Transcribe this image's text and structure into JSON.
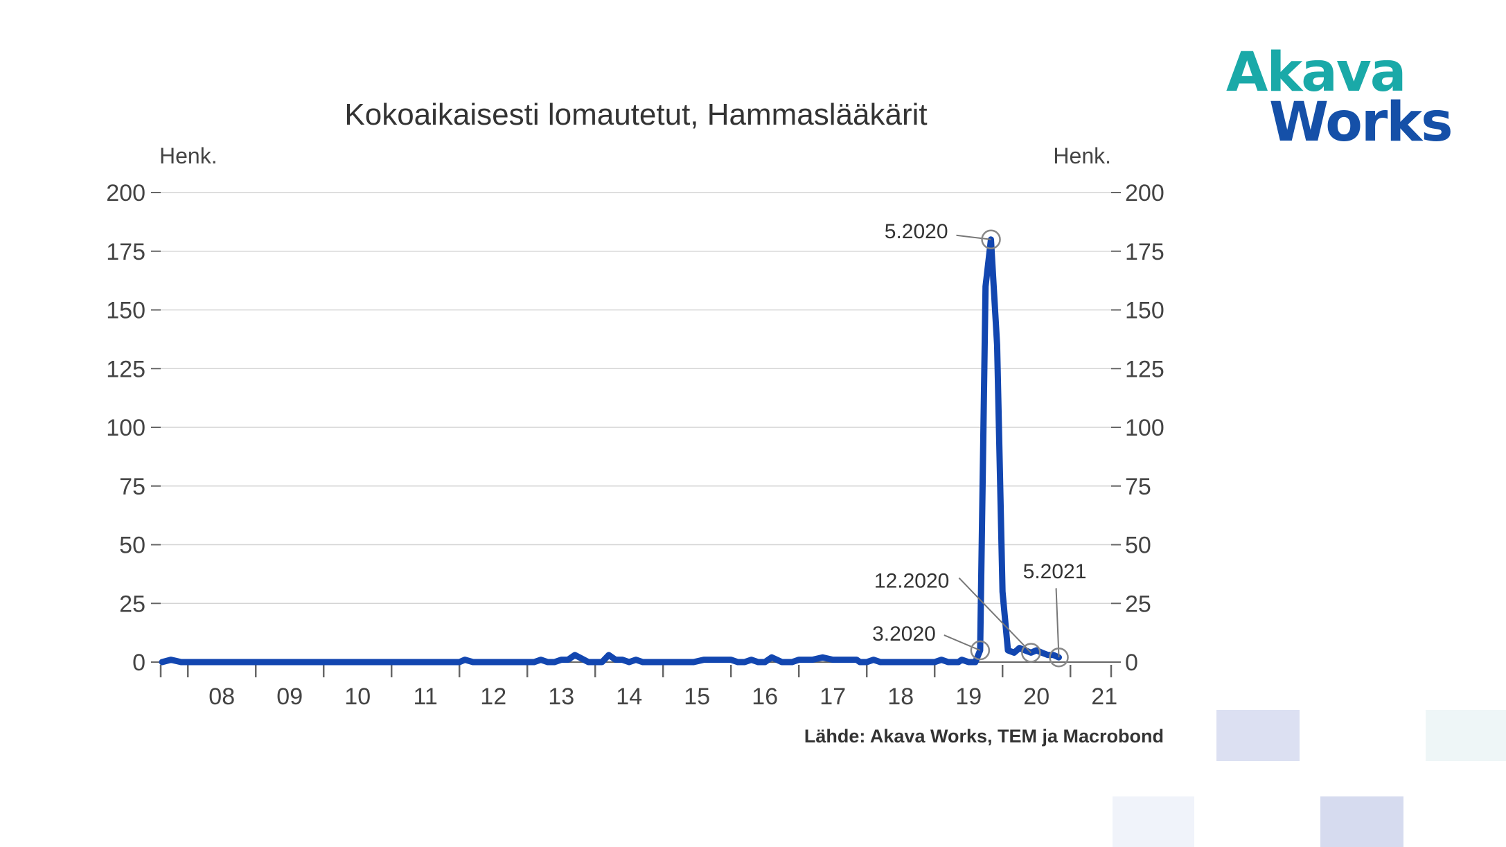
{
  "logo": {
    "line1": "Akava",
    "line2": "Works"
  },
  "source": "Lähde: Akava Works, TEM ja Macrobond",
  "chart_data": {
    "type": "line",
    "title": "Kokoaikaisesti lomautetut, Hammaslääkärit",
    "ylabel_left": "Henk.",
    "ylabel_right": "Henk.",
    "ylim": [
      0,
      200
    ],
    "yticks": [
      0,
      25,
      50,
      75,
      100,
      125,
      150,
      175,
      200
    ],
    "xlim": [
      2007.6,
      2021.6
    ],
    "xticks": [
      "08",
      "09",
      "10",
      "11",
      "12",
      "13",
      "14",
      "15",
      "16",
      "17",
      "18",
      "19",
      "20",
      "21"
    ],
    "grid": true,
    "color": "#1246b0",
    "series": [
      {
        "x": [
          2007.62,
          2007.75,
          2007.9,
          2008.5,
          2009,
          2010,
          2011,
          2011.9,
          2012.0,
          2012.08,
          2012.2,
          2013,
          2013.1,
          2013.2,
          2013.3,
          2013.4,
          2013.5,
          2013.6,
          2013.7,
          2013.9,
          2014.0,
          2014.1,
          2014.2,
          2014.3,
          2014.4,
          2014.5,
          2014.6,
          2014.7,
          2015,
          2015.3,
          2015.45,
          2015.6,
          2015.75,
          2015.9,
          2016.0,
          2016.1,
          2016.2,
          2016.3,
          2016.4,
          2016.5,
          2016.6,
          2016.75,
          2016.9,
          2017.0,
          2017.1,
          2017.2,
          2017.35,
          2017.5,
          2017.7,
          2017.85,
          2017.9,
          2018.0,
          2018.1,
          2018.2,
          2018.3,
          2018.5,
          2018.8,
          2019.0,
          2019.1,
          2019.2,
          2019.3,
          2019.35,
          2019.4,
          2019.5,
          2019.55,
          2019.6,
          2019.67,
          2019.75,
          2019.83,
          2019.92,
          2020.0,
          2020.08,
          2020.17,
          2020.25,
          2020.33,
          2020.42,
          2020.5,
          2020.58,
          2020.67,
          2020.75,
          2020.83
        ],
        "values": [
          0,
          1,
          0,
          0,
          0,
          0,
          0,
          0,
          0,
          1,
          0,
          0,
          0,
          1,
          0,
          0,
          1,
          1,
          3,
          0,
          0,
          0,
          3,
          1,
          1,
          0,
          1,
          0,
          0,
          0,
          0,
          1,
          1,
          1,
          1,
          0,
          0,
          1,
          0,
          0,
          2,
          0,
          0,
          1,
          1,
          1,
          2,
          1,
          1,
          1,
          0,
          0,
          1,
          0,
          0,
          0,
          0,
          0,
          1,
          0,
          0,
          0,
          1,
          0,
          0,
          0,
          5,
          160,
          180,
          135,
          30,
          5,
          4,
          6,
          5,
          4,
          5,
          4,
          3,
          3,
          2
        ]
      }
    ],
    "annotations": [
      {
        "label": "5.2020",
        "x": 2019.83,
        "y": 180
      },
      {
        "label": "3.2020",
        "x": 2019.67,
        "y": 5
      },
      {
        "label": "12.2020",
        "x": 2020.42,
        "y": 4
      },
      {
        "label": "5.2021",
        "x": 2020.83,
        "y": 2
      }
    ]
  }
}
